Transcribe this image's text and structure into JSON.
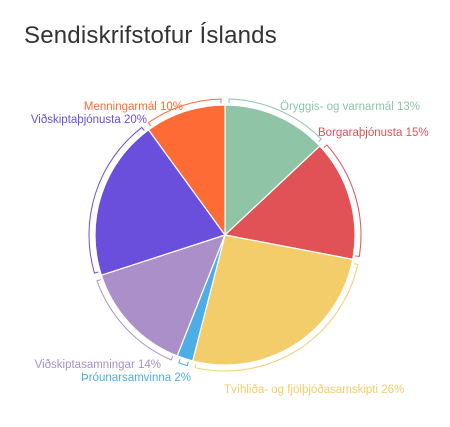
{
  "chart_data": {
    "type": "pie",
    "title": "Sendiskrifstofur Íslands",
    "slices": [
      {
        "label": "Öryggis- og varnarmál 13%",
        "value": 13,
        "color": "#8fc4a6"
      },
      {
        "label": "Borgaraþjónusta 15%",
        "value": 15,
        "color": "#e05256"
      },
      {
        "label": "Tvíhliða- og fjölþjóðasamskipti 26%",
        "value": 26,
        "color": "#f2cd6a"
      },
      {
        "label": "Þróunarsamvinna 2%",
        "value": 2,
        "color": "#4daee6"
      },
      {
        "label": "Viðskiptasamningar 14%",
        "value": 14,
        "color": "#aa8fc9"
      },
      {
        "label": "Viðskiptaþjónusta 20%",
        "value": 20,
        "color": "#6a4fdc"
      },
      {
        "label": "Menningarmál 10%",
        "value": 10,
        "color": "#ff6b35"
      }
    ]
  }
}
